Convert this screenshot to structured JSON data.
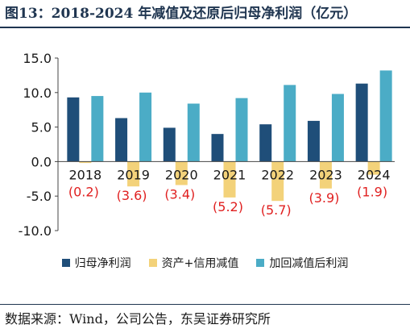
{
  "figure": {
    "title": "图13：2018-2024 年减值及还原后归母净利润（亿元）",
    "source": "数据来源：Wind，公司公告，东吴证券研究所"
  },
  "chart_data": {
    "type": "bar",
    "title": "",
    "xlabel": "",
    "ylabel": "",
    "categories": [
      "2018",
      "2019",
      "2020",
      "2021",
      "2022",
      "2023",
      "2024"
    ],
    "ylim": [
      -10,
      15
    ],
    "yticks": [
      15,
      10,
      5,
      0,
      -5,
      -10
    ],
    "ytick_labels": [
      "15.0",
      "10.0",
      "5.0",
      "0.0",
      "-5.0",
      "-10.0"
    ],
    "grid": false,
    "legend_position": "bottom",
    "series": [
      {
        "name": "归母净利润",
        "color": "#1f4e79",
        "values": [
          9.3,
          6.3,
          4.9,
          4.0,
          5.4,
          5.9,
          11.3
        ]
      },
      {
        "name": "资产+信用减值",
        "color": "#f3d27a",
        "values": [
          -0.2,
          -3.6,
          -3.4,
          -5.2,
          -5.7,
          -3.9,
          -1.9
        ]
      },
      {
        "name": "加回减值后利润",
        "color": "#4bacc6",
        "values": [
          9.5,
          10.0,
          8.4,
          9.2,
          11.1,
          9.8,
          13.2
        ]
      }
    ],
    "data_labels": {
      "series_index": 1,
      "color": "#e02020",
      "labels": [
        "(0.2)",
        "(3.6)",
        "(3.4)",
        "(5.2)",
        "(5.7)",
        "(3.9)",
        "(1.9)"
      ]
    }
  }
}
